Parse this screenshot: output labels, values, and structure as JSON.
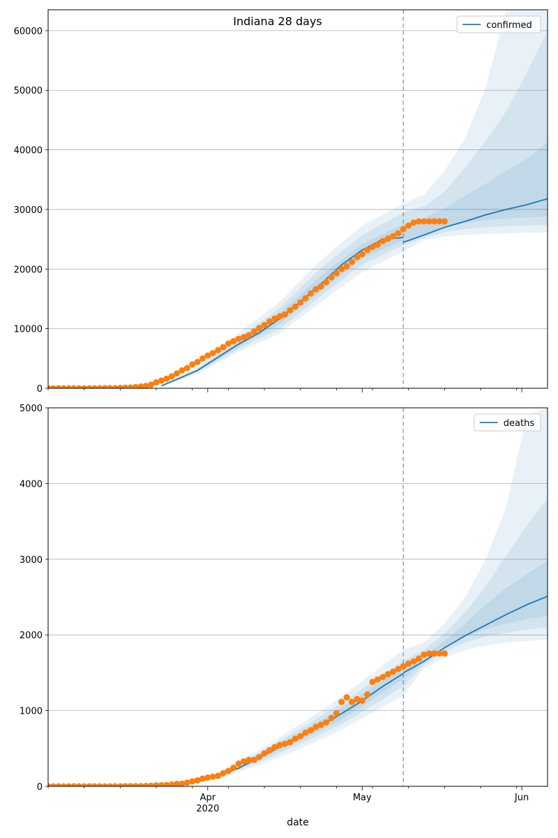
{
  "figure": {
    "title": "Indiana 28 days",
    "xlabel": "date"
  },
  "chart_data": [
    {
      "type": "line",
      "name": "confirmed-panel",
      "legend": [
        "confirmed"
      ],
      "legend_position": "top-right",
      "grid": "horizontal",
      "xlim": [
        "2020-03-01",
        "2020-06-06"
      ],
      "ylim": [
        0,
        63500
      ],
      "yticks": [
        0,
        10000,
        20000,
        30000,
        40000,
        50000,
        60000
      ],
      "vline_date": "2020-05-09",
      "fit": {
        "dates": [
          "2020-03-23",
          "2020-03-26",
          "2020-03-30",
          "2020-04-03",
          "2020-04-07",
          "2020-04-11",
          "2020-04-15",
          "2020-04-19",
          "2020-04-23",
          "2020-04-27",
          "2020-05-01",
          "2020-05-05",
          "2020-05-09"
        ],
        "values": [
          400,
          1500,
          3000,
          5200,
          7400,
          9300,
          11700,
          14500,
          17500,
          20700,
          23200,
          25000,
          25300
        ]
      },
      "forecast": {
        "dates": [
          "2020-05-09",
          "2020-05-13",
          "2020-05-17",
          "2020-05-21",
          "2020-05-25",
          "2020-05-29",
          "2020-06-02",
          "2020-06-06"
        ],
        "values": [
          24500,
          25700,
          27000,
          28000,
          29100,
          30000,
          30800,
          31800
        ]
      },
      "bands": [
        {
          "dates": [
            "2020-03-23",
            "2020-03-30",
            "2020-04-07",
            "2020-04-15",
            "2020-04-23",
            "2020-05-01",
            "2020-05-09",
            "2020-05-13",
            "2020-05-17",
            "2020-05-21",
            "2020-05-25",
            "2020-05-29",
            "2020-06-02",
            "2020-06-06"
          ],
          "upper": [
            600,
            3600,
            9300,
            14500,
            21500,
            27300,
            31000,
            32500,
            36500,
            42000,
            50500,
            63500,
            63500,
            63500
          ],
          "lower": [
            200,
            2400,
            6100,
            9200,
            14500,
            19500,
            23000,
            24800,
            25500,
            25700,
            25900,
            26000,
            26100,
            26100
          ]
        },
        {
          "dates": [
            "2020-03-23",
            "2020-03-30",
            "2020-04-07",
            "2020-04-15",
            "2020-04-23",
            "2020-05-01",
            "2020-05-09",
            "2020-05-13",
            "2020-05-17",
            "2020-05-21",
            "2020-05-25",
            "2020-05-29",
            "2020-06-02",
            "2020-06-06"
          ],
          "upper": [
            500,
            3300,
            8400,
            13500,
            20200,
            25700,
            29500,
            30500,
            33000,
            37000,
            41500,
            46500,
            53000,
            60000
          ],
          "lower": [
            300,
            2700,
            6600,
            10000,
            15500,
            20800,
            24000,
            25200,
            26200,
            26700,
            27000,
            27200,
            27300,
            27400
          ]
        },
        {
          "dates": [
            "2020-03-23",
            "2020-03-30",
            "2020-04-07",
            "2020-04-15",
            "2020-04-23",
            "2020-05-01",
            "2020-05-09",
            "2020-05-13",
            "2020-05-17",
            "2020-05-21",
            "2020-05-25",
            "2020-05-29",
            "2020-06-02",
            "2020-06-06"
          ],
          "upper": [
            450,
            3100,
            7900,
            12600,
            18900,
            24200,
            27500,
            28500,
            30200,
            32300,
            34300,
            36500,
            38500,
            41300
          ],
          "lower": [
            350,
            2900,
            7000,
            10800,
            16300,
            21800,
            24800,
            25800,
            27000,
            27800,
            28200,
            28500,
            28700,
            28800
          ]
        }
      ],
      "observed": {
        "dates": [
          "2020-03-01",
          "2020-03-02",
          "2020-03-03",
          "2020-03-04",
          "2020-03-05",
          "2020-03-06",
          "2020-03-07",
          "2020-03-08",
          "2020-03-09",
          "2020-03-10",
          "2020-03-11",
          "2020-03-12",
          "2020-03-13",
          "2020-03-14",
          "2020-03-15",
          "2020-03-16",
          "2020-03-17",
          "2020-03-18",
          "2020-03-19",
          "2020-03-20",
          "2020-03-21",
          "2020-03-22",
          "2020-03-23",
          "2020-03-24",
          "2020-03-25",
          "2020-03-26",
          "2020-03-27",
          "2020-03-28",
          "2020-03-29",
          "2020-03-30",
          "2020-03-31",
          "2020-04-01",
          "2020-04-02",
          "2020-04-03",
          "2020-04-04",
          "2020-04-05",
          "2020-04-06",
          "2020-04-07",
          "2020-04-08",
          "2020-04-09",
          "2020-04-10",
          "2020-04-11",
          "2020-04-12",
          "2020-04-13",
          "2020-04-14",
          "2020-04-15",
          "2020-04-16",
          "2020-04-17",
          "2020-04-18",
          "2020-04-19",
          "2020-04-20",
          "2020-04-21",
          "2020-04-22",
          "2020-04-23",
          "2020-04-24",
          "2020-04-25",
          "2020-04-26",
          "2020-04-27",
          "2020-04-28",
          "2020-04-29",
          "2020-04-30",
          "2020-05-01",
          "2020-05-02",
          "2020-05-03",
          "2020-05-04",
          "2020-05-05",
          "2020-05-06",
          "2020-05-07",
          "2020-05-08",
          "2020-05-09",
          "2020-05-10",
          "2020-05-11",
          "2020-05-12",
          "2020-05-13",
          "2020-05-14",
          "2020-05-15",
          "2020-05-16",
          "2020-05-17"
        ],
        "values": [
          0,
          0,
          0,
          0,
          0,
          0,
          0,
          0,
          0,
          0,
          10,
          20,
          30,
          40,
          60,
          100,
          130,
          200,
          300,
          400,
          600,
          1000,
          1300,
          1600,
          2000,
          2500,
          3000,
          3400,
          4000,
          4400,
          5000,
          5500,
          5900,
          6400,
          6900,
          7500,
          7900,
          8300,
          8600,
          8900,
          9500,
          10100,
          10600,
          11200,
          11700,
          12100,
          12400,
          13100,
          13700,
          14400,
          15100,
          15900,
          16600,
          17100,
          17800,
          18600,
          19300,
          20000,
          20500,
          21200,
          22000,
          22500,
          23200,
          23700,
          24100,
          24700,
          25100,
          25500,
          26000,
          26700,
          27300,
          27800,
          28000,
          28000,
          28000,
          28000,
          28000,
          28000
        ]
      }
    },
    {
      "type": "line",
      "name": "deaths-panel",
      "legend": [
        "deaths"
      ],
      "legend_position": "top-right",
      "grid": "horizontal",
      "xlim": [
        "2020-03-01",
        "2020-06-06"
      ],
      "ylim": [
        0,
        5000
      ],
      "yticks": [
        0,
        1000,
        2000,
        3000,
        4000,
        5000
      ],
      "vline_date": "2020-05-09",
      "xtick_labels": [
        {
          "date": "2020-04-01",
          "label": "Apr",
          "sublabel": "2020"
        },
        {
          "date": "2020-05-01",
          "label": "May"
        },
        {
          "date": "2020-06-01",
          "label": "Jun"
        }
      ],
      "fit": {
        "dates": [
          "2020-03-26",
          "2020-03-30",
          "2020-04-03",
          "2020-04-07",
          "2020-04-11",
          "2020-04-15",
          "2020-04-19",
          "2020-04-23",
          "2020-04-27",
          "2020-05-01",
          "2020-05-05",
          "2020-05-09"
        ],
        "values": [
          20,
          60,
          140,
          240,
          380,
          520,
          660,
          800,
          960,
          1130,
          1320,
          1490
        ]
      },
      "forecast": {
        "dates": [
          "2020-05-09",
          "2020-05-13",
          "2020-05-17",
          "2020-05-21",
          "2020-05-25",
          "2020-05-29",
          "2020-06-02",
          "2020-06-06"
        ],
        "values": [
          1500,
          1650,
          1830,
          1990,
          2130,
          2270,
          2400,
          2510
        ]
      },
      "bands": [
        {
          "dates": [
            "2020-03-26",
            "2020-04-03",
            "2020-04-11",
            "2020-04-19",
            "2020-04-27",
            "2020-05-05",
            "2020-05-09",
            "2020-05-13",
            "2020-05-17",
            "2020-05-21",
            "2020-05-25",
            "2020-05-29",
            "2020-06-02",
            "2020-06-06"
          ],
          "upper": [
            30,
            180,
            480,
            820,
            1180,
            1600,
            1800,
            1900,
            2150,
            2500,
            3000,
            3700,
            4900,
            5000
          ],
          "lower": [
            10,
            100,
            280,
            500,
            750,
            1050,
            1200,
            1550,
            1700,
            1800,
            1860,
            1900,
            1920,
            1940
          ]
        },
        {
          "dates": [
            "2020-03-26",
            "2020-04-03",
            "2020-04-11",
            "2020-04-19",
            "2020-04-27",
            "2020-05-05",
            "2020-05-09",
            "2020-05-13",
            "2020-05-17",
            "2020-05-21",
            "2020-05-25",
            "2020-05-29",
            "2020-06-02",
            "2020-06-06"
          ],
          "upper": [
            25,
            165,
            440,
            760,
            1100,
            1480,
            1660,
            1800,
            2020,
            2300,
            2650,
            3050,
            3450,
            3800
          ],
          "lower": [
            15,
            115,
            320,
            560,
            820,
            1150,
            1320,
            1600,
            1780,
            1900,
            1980,
            2030,
            2070,
            2100
          ]
        },
        {
          "dates": [
            "2020-03-26",
            "2020-04-03",
            "2020-04-11",
            "2020-04-19",
            "2020-04-27",
            "2020-05-05",
            "2020-05-09",
            "2020-05-13",
            "2020-05-17",
            "2020-05-21",
            "2020-05-25",
            "2020-05-29",
            "2020-06-02",
            "2020-06-06"
          ],
          "upper": [
            22,
            155,
            410,
            710,
            1040,
            1400,
            1570,
            1720,
            1920,
            2150,
            2400,
            2620,
            2800,
            2980
          ],
          "lower": [
            18,
            125,
            350,
            610,
            880,
            1240,
            1420,
            1640,
            1830,
            1980,
            2080,
            2150,
            2210,
            2250
          ]
        }
      ],
      "observed": {
        "dates": [
          "2020-03-01",
          "2020-03-02",
          "2020-03-03",
          "2020-03-04",
          "2020-03-05",
          "2020-03-06",
          "2020-03-07",
          "2020-03-08",
          "2020-03-09",
          "2020-03-10",
          "2020-03-11",
          "2020-03-12",
          "2020-03-13",
          "2020-03-14",
          "2020-03-15",
          "2020-03-16",
          "2020-03-17",
          "2020-03-18",
          "2020-03-19",
          "2020-03-20",
          "2020-03-21",
          "2020-03-22",
          "2020-03-23",
          "2020-03-24",
          "2020-03-25",
          "2020-03-26",
          "2020-03-27",
          "2020-03-28",
          "2020-03-29",
          "2020-03-30",
          "2020-03-31",
          "2020-04-01",
          "2020-04-02",
          "2020-04-03",
          "2020-04-04",
          "2020-04-05",
          "2020-04-06",
          "2020-04-07",
          "2020-04-08",
          "2020-04-09",
          "2020-04-10",
          "2020-04-11",
          "2020-04-12",
          "2020-04-13",
          "2020-04-14",
          "2020-04-15",
          "2020-04-16",
          "2020-04-17",
          "2020-04-18",
          "2020-04-19",
          "2020-04-20",
          "2020-04-21",
          "2020-04-22",
          "2020-04-23",
          "2020-04-24",
          "2020-04-25",
          "2020-04-26",
          "2020-04-27",
          "2020-04-28",
          "2020-04-29",
          "2020-04-30",
          "2020-05-01",
          "2020-05-02",
          "2020-05-03",
          "2020-05-04",
          "2020-05-05",
          "2020-05-06",
          "2020-05-07",
          "2020-05-08",
          "2020-05-09",
          "2020-05-10",
          "2020-05-11",
          "2020-05-12",
          "2020-05-13",
          "2020-05-14",
          "2020-05-15",
          "2020-05-16",
          "2020-05-17"
        ],
        "values": [
          0,
          0,
          0,
          0,
          0,
          0,
          0,
          0,
          0,
          0,
          0,
          0,
          0,
          0,
          0,
          2,
          2,
          2,
          2,
          4,
          7,
          12,
          14,
          17,
          24,
          32,
          35,
          49,
          65,
          78,
          102,
          116,
          127,
          139,
          173,
          203,
          245,
          300,
          330,
          350,
          350,
          387,
          436,
          477,
          519,
          545,
          562,
          583,
          630,
          661,
          709,
          741,
          785,
          813,
          844,
          901,
          966,
          1115,
          1175,
          1115,
          1151,
          1132,
          1212,
          1379,
          1411,
          1444,
          1482,
          1514,
          1550,
          1587,
          1621,
          1651,
          1688,
          1739,
          1755,
          1755,
          1755,
          1755
        ]
      }
    }
  ]
}
